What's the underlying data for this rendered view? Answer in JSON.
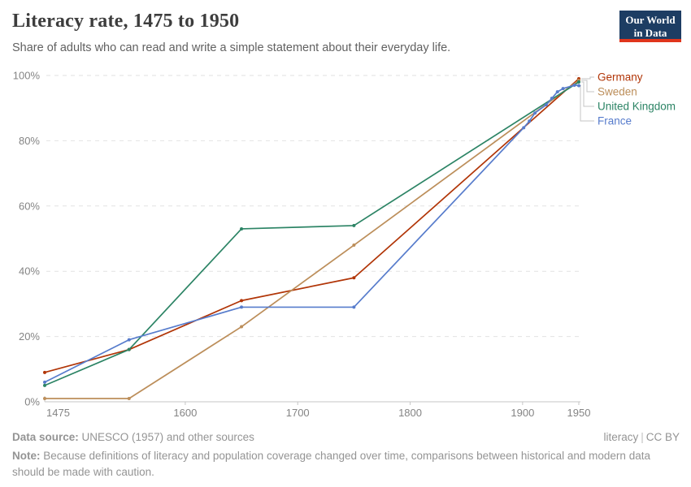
{
  "header": {
    "title": "Literacy rate, 1475 to 1950",
    "subtitle": "Share of adults who can read and write a simple statement about their everyday life.",
    "logo": {
      "line1": "Our World",
      "line2": "in Data",
      "bg": "#1d3d63",
      "bar": "#e0351c"
    }
  },
  "chart_data": {
    "type": "line",
    "title": "Literacy rate, 1475 to 1950",
    "xlabel": "",
    "ylabel": "",
    "xlim": [
      1475,
      1950
    ],
    "ylim": [
      0,
      100
    ],
    "x_ticks": [
      1475,
      1600,
      1700,
      1800,
      1900,
      1950
    ],
    "y_ticks": [
      0,
      20,
      40,
      60,
      80,
      100
    ],
    "y_tick_suffix": "%",
    "grid": "horizontal-dashed",
    "markers": true,
    "legend_position": "right-of-line-ends",
    "series": [
      {
        "name": "Germany",
        "color": "#b13507",
        "points": [
          [
            1475,
            9
          ],
          [
            1550,
            16
          ],
          [
            1650,
            31
          ],
          [
            1750,
            38
          ],
          [
            1950,
            99
          ]
        ]
      },
      {
        "name": "Sweden",
        "color": "#bc8e5a",
        "points": [
          [
            1475,
            1
          ],
          [
            1550,
            1
          ],
          [
            1650,
            23
          ],
          [
            1750,
            48
          ],
          [
            1950,
            98.5
          ]
        ]
      },
      {
        "name": "United Kingdom",
        "color": "#2c8465",
        "points": [
          [
            1475,
            5
          ],
          [
            1550,
            16
          ],
          [
            1650,
            53
          ],
          [
            1750,
            54
          ],
          [
            1950,
            98
          ]
        ]
      },
      {
        "name": "France",
        "color": "#577ccc",
        "points": [
          [
            1475,
            6
          ],
          [
            1550,
            19
          ],
          [
            1650,
            29
          ],
          [
            1750,
            29
          ],
          [
            1901,
            84
          ],
          [
            1906,
            86
          ],
          [
            1911,
            88.5
          ],
          [
            1921,
            91
          ],
          [
            1926,
            93
          ],
          [
            1931,
            95
          ],
          [
            1936,
            96
          ],
          [
            1946,
            97
          ],
          [
            1950,
            96.9
          ]
        ]
      }
    ]
  },
  "footer": {
    "source_label": "Data source:",
    "source_text": "UNESCO (1957) and other sources",
    "link_text": "literacy",
    "separator": "|",
    "license_text": "CC BY",
    "note_label": "Note:",
    "note_text": "Because definitions of literacy and population coverage changed over time, comparisons between historical and modern data should be made with caution."
  }
}
